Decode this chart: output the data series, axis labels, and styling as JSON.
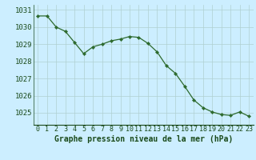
{
  "x": [
    0,
    1,
    2,
    3,
    4,
    5,
    6,
    7,
    8,
    9,
    10,
    11,
    12,
    13,
    14,
    15,
    16,
    17,
    18,
    19,
    20,
    21,
    22,
    23
  ],
  "y": [
    1030.65,
    1030.65,
    1030.0,
    1029.75,
    1029.1,
    1028.45,
    1028.85,
    1029.0,
    1029.2,
    1029.3,
    1029.45,
    1029.4,
    1029.05,
    1028.55,
    1027.75,
    1027.3,
    1026.55,
    1025.75,
    1025.3,
    1025.05,
    1024.9,
    1024.85,
    1025.05,
    1024.8
  ],
  "title": "Graphe pression niveau de la mer (hPa)",
  "xlim": [
    -0.5,
    23.5
  ],
  "ylim": [
    1024.3,
    1031.3
  ],
  "yticks": [
    1025,
    1026,
    1027,
    1028,
    1029,
    1030,
    1031
  ],
  "xticks": [
    0,
    1,
    2,
    3,
    4,
    5,
    6,
    7,
    8,
    9,
    10,
    11,
    12,
    13,
    14,
    15,
    16,
    17,
    18,
    19,
    20,
    21,
    22,
    23
  ],
  "line_color": "#2d6a2d",
  "marker_color": "#2d6a2d",
  "bg_color": "#cceeff",
  "grid_color": "#b0d0d0",
  "title_color": "#1a4a1a",
  "title_fontsize": 7.0,
  "tick_fontsize": 6.0,
  "ylabel_fontsize": 6.5
}
